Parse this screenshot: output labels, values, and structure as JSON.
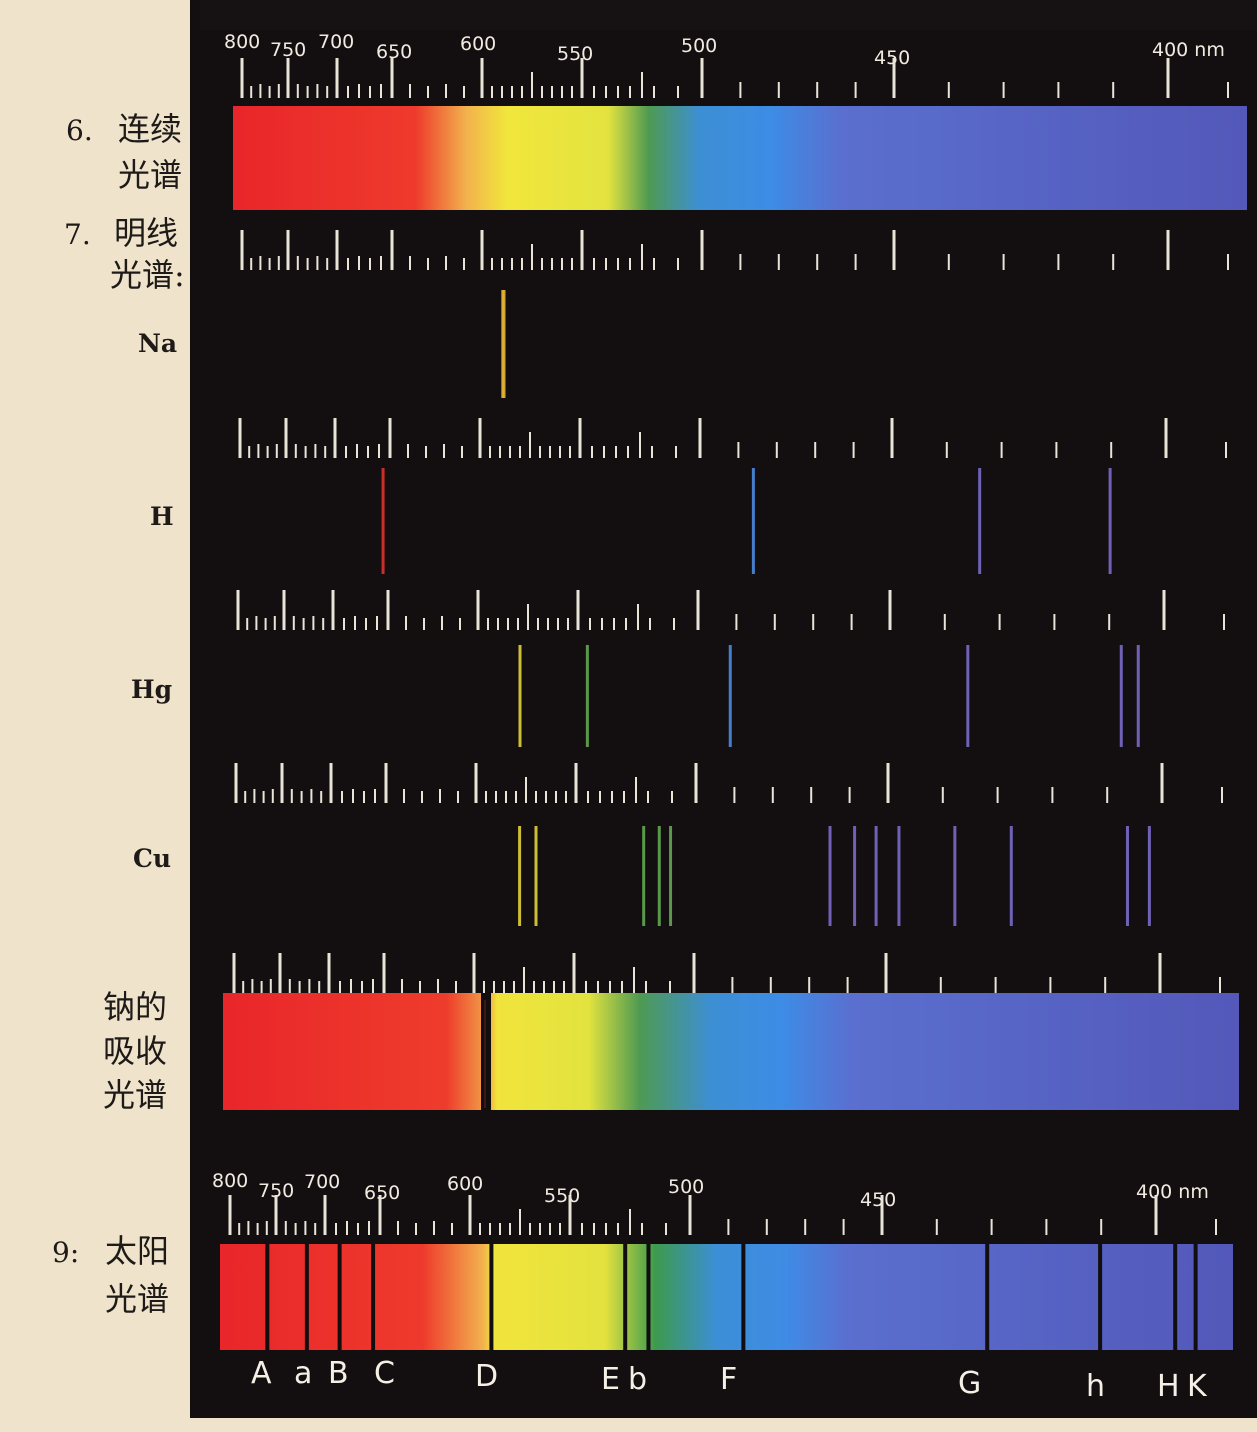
{
  "labels": {
    "continuous": {
      "num": "6.",
      "line1": "连续",
      "line2": "光谱"
    },
    "bright_line": {
      "num": "7.",
      "line1": "明线",
      "line2": "光谱:"
    },
    "na": "Na",
    "h": "H",
    "hg": "Hg",
    "cu": "Cu",
    "na_absorption": {
      "line1": "钠的",
      "line2": "吸收",
      "line3": "光谱"
    },
    "solar": {
      "num": "9:",
      "line1": "太阳",
      "line2": "光谱"
    }
  },
  "scale": {
    "ticks": [
      "800",
      "750",
      "700",
      "650",
      "600",
      "550",
      "500",
      "450",
      "400 nm"
    ]
  },
  "fraunhofer": [
    "A",
    "a",
    "B",
    "C",
    "D",
    "E",
    "b",
    "F",
    "G",
    "h",
    "H",
    "K"
  ],
  "colors": {
    "panel": "#130f11",
    "background": "#efe3cc",
    "red": "#e8312a",
    "yellow": "#f2e93a",
    "green": "#3c9a4e",
    "blue": "#3f8fe0",
    "violet": "#5c5fbd"
  },
  "emission_lines": {
    "Na": [
      589.0,
      589.6
    ],
    "H": [
      656.3,
      486.1,
      434.0,
      410.2
    ],
    "Hg": [
      579.0,
      546.1,
      491.6,
      435.8,
      407.8,
      404.7
    ],
    "Cu": [
      578.2,
      570.0,
      521.8,
      515.3,
      510.6,
      465.1,
      458.7,
      453.1,
      448.0,
      437.8,
      427.5,
      406.3,
      402.3
    ]
  },
  "solar_absorption_lines": [
    759.4,
    718.5,
    686.7,
    656.3,
    589.3,
    527.0,
    517.3,
    486.1,
    430.8,
    410.2,
    396.8,
    393.4
  ]
}
